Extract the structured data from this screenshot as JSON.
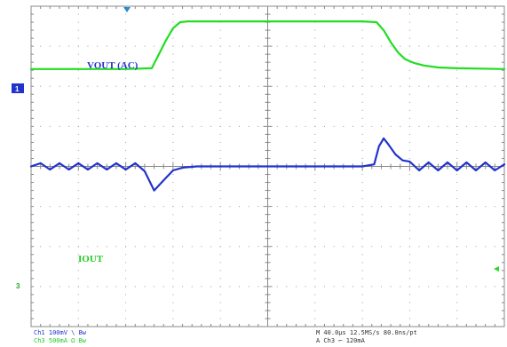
{
  "chart_data": {
    "type": "line",
    "grid": true,
    "divisions": {
      "horizontal": 10,
      "vertical": 8
    },
    "series": [
      {
        "name": "VOUT (AC)",
        "channel": "1",
        "color": "#2233cc",
        "x": [
          0,
          0.2,
          0.4,
          0.6,
          0.8,
          1.0,
          1.2,
          1.4,
          1.6,
          1.8,
          2.0,
          2.2,
          2.4,
          2.6,
          2.8,
          3.0,
          3.2,
          3.5,
          4.0,
          5.0,
          6.0,
          7.0,
          7.25,
          7.35,
          7.45,
          7.55,
          7.7,
          7.85,
          8.0,
          8.2,
          8.4,
          8.6,
          8.8,
          9.0,
          9.2,
          9.4,
          9.6,
          9.8,
          10.0
        ],
        "y": [
          0.0,
          0.08,
          -0.08,
          0.08,
          -0.08,
          0.08,
          -0.08,
          0.08,
          -0.08,
          0.08,
          -0.08,
          0.08,
          -0.12,
          -0.6,
          -0.35,
          -0.1,
          -0.03,
          0.0,
          0.0,
          0.0,
          0.0,
          0.0,
          0.05,
          0.5,
          0.7,
          0.55,
          0.3,
          0.15,
          0.12,
          -0.1,
          0.1,
          -0.1,
          0.1,
          -0.1,
          0.1,
          -0.1,
          0.1,
          -0.1,
          0.05
        ]
      },
      {
        "name": "IOUT",
        "channel": "3",
        "color": "#22dd22",
        "x": [
          0,
          1.0,
          2.0,
          2.55,
          2.7,
          2.85,
          3.0,
          3.15,
          3.3,
          5.0,
          7.0,
          7.3,
          7.45,
          7.6,
          7.75,
          7.9,
          8.1,
          8.3,
          8.6,
          9.0,
          10.0
        ],
        "y": [
          2.43,
          2.43,
          2.43,
          2.45,
          2.8,
          3.15,
          3.45,
          3.6,
          3.62,
          3.62,
          3.62,
          3.6,
          3.4,
          3.1,
          2.85,
          2.68,
          2.58,
          2.52,
          2.47,
          2.45,
          2.43
        ]
      }
    ]
  },
  "labels": {
    "vout": "VOUT (AC)",
    "iout": "IOUT",
    "ch1_marker": "1",
    "ch3_marker": "3"
  },
  "readout": {
    "line1_left": "Ch1   100mV  \\  Bw",
    "line2_left": "Ch3   500mA  Ω  Bw",
    "line1_right": "M 40.0µs 12.5MS/s   80.0ns/pt",
    "line2_right": "A  Ch3  ⌐  120mA"
  },
  "colors": {
    "graticule": "#888888",
    "grid_dot": "#999999",
    "ch1": "#2233cc",
    "ch3": "#22dd22",
    "trigger": "#2a8acb"
  }
}
